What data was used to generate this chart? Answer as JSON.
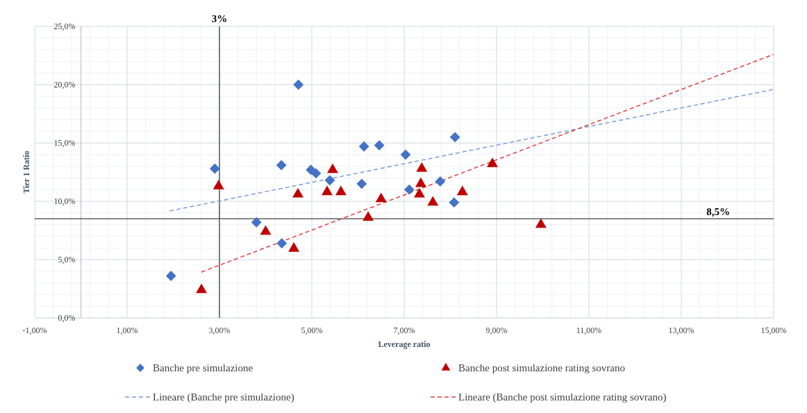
{
  "chart_data": {
    "type": "scatter",
    "xlabel": "Leverage ratio",
    "ylabel": "Tier 1 Ratio",
    "xlim": [
      -1,
      15
    ],
    "ylim": [
      0,
      25
    ],
    "xticks": [
      {
        "value": -1,
        "label": "-1,00%"
      },
      {
        "value": 1,
        "label": "1,00%"
      },
      {
        "value": 3,
        "label": "3,00%"
      },
      {
        "value": 5,
        "label": "5,00%"
      },
      {
        "value": 7,
        "label": "7,00%"
      },
      {
        "value": 9,
        "label": "9,00%"
      },
      {
        "value": 11,
        "label": "11,00%"
      },
      {
        "value": 13,
        "label": "13,00%"
      },
      {
        "value": 15,
        "label": "15,00%"
      }
    ],
    "yticks": [
      {
        "value": 0,
        "label": "0,0%"
      },
      {
        "value": 5,
        "label": "5,0%"
      },
      {
        "value": 10,
        "label": "10,0%"
      },
      {
        "value": 15,
        "label": "15,0%"
      },
      {
        "value": 20,
        "label": "20,0%"
      },
      {
        "value": 25,
        "label": "25,0%"
      }
    ],
    "grid": true,
    "legend": "bottom",
    "series": [
      {
        "name": "Banche pre simulazione",
        "marker": "diamond",
        "color": "#4472c4",
        "x": [
          1.95,
          2.9,
          3.8,
          4.34,
          4.35,
          4.71,
          4.98,
          5.09,
          5.39,
          6.08,
          6.13,
          6.46,
          7.03,
          7.11,
          7.78,
          8.08,
          8.1
        ],
        "values": [
          3.6,
          12.8,
          8.2,
          13.1,
          6.4,
          20.0,
          12.7,
          12.4,
          11.8,
          11.5,
          14.7,
          14.8,
          14.0,
          11.0,
          11.7,
          9.9,
          15.5
        ]
      },
      {
        "name": "Banche post simulazione rating sovrano",
        "marker": "triangle",
        "color": "#c00000",
        "x": [
          2.61,
          2.98,
          4.0,
          4.61,
          4.7,
          5.33,
          5.45,
          5.63,
          6.22,
          6.5,
          7.33,
          7.36,
          7.38,
          7.62,
          8.26,
          8.91,
          9.96
        ],
        "values": [
          2.4,
          11.3,
          7.4,
          5.95,
          10.6,
          10.8,
          12.7,
          10.8,
          8.6,
          10.2,
          10.6,
          11.5,
          12.8,
          9.9,
          10.8,
          13.2,
          8.0
        ]
      },
      {
        "name": "Lineare (Banche pre simulazione)",
        "type": "line",
        "line_style": "dashed",
        "marker": "none",
        "color": "#7b9bd6",
        "x": [
          1.92,
          15
        ],
        "values": [
          9.17,
          19.6
        ]
      },
      {
        "name": "Lineare (Banche post simulazione rating sovrano)",
        "type": "line",
        "line_style": "dashed",
        "marker": "none",
        "color": "#e03c3c",
        "x": [
          2.61,
          15
        ],
        "values": [
          3.93,
          22.6
        ]
      }
    ],
    "ref_lines": [
      {
        "axis": "x",
        "value": 3,
        "label": "3%",
        "color": "#404040"
      },
      {
        "axis": "y",
        "value": 8.5,
        "label": "8,5%",
        "color": "#404040"
      }
    ]
  }
}
